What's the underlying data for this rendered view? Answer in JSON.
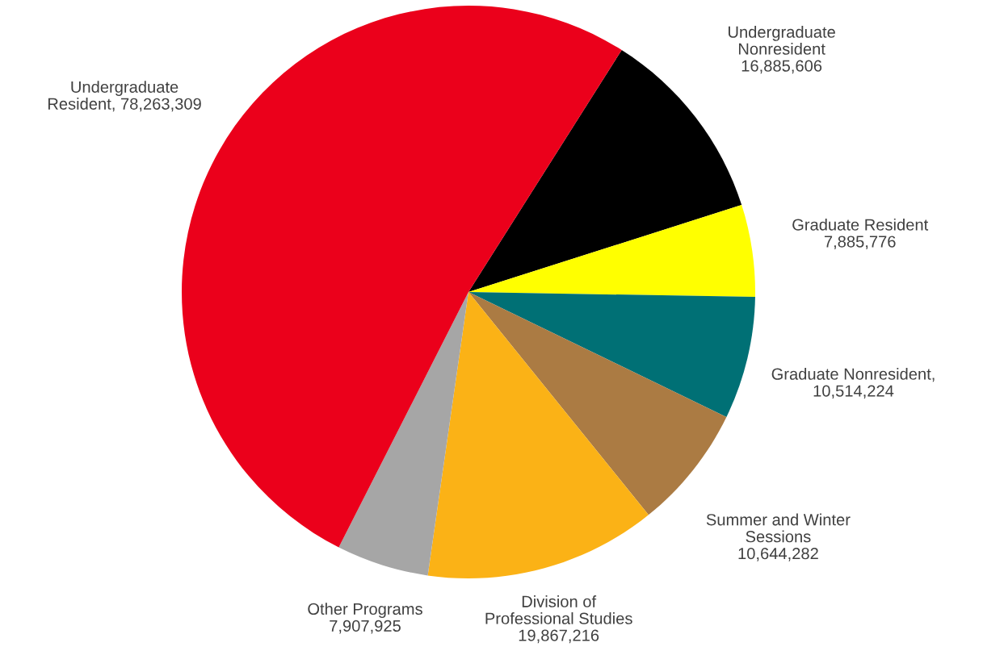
{
  "chart_data": {
    "type": "pie",
    "categories": [
      "Undergraduate\nNonresident\n16,885,606",
      "Graduate Resident\n7,885,776",
      "Graduate Nonresident,\n10,514,224",
      "Summer and Winter\nSessions\n10,644,282",
      "Division of\nProfessional Studies\n19,867,216",
      "Other Programs\n7,907,925",
      "Undergraduate\nResident, 78,263,309"
    ],
    "values": [
      16885606,
      7885776,
      10514224,
      10644282,
      19867216,
      7907925,
      78263309
    ],
    "colors": [
      "#000000",
      "#ffff00",
      "#007075",
      "#ab7b43",
      "#fbb216",
      "#a6a6a6",
      "#eb001b"
    ]
  }
}
